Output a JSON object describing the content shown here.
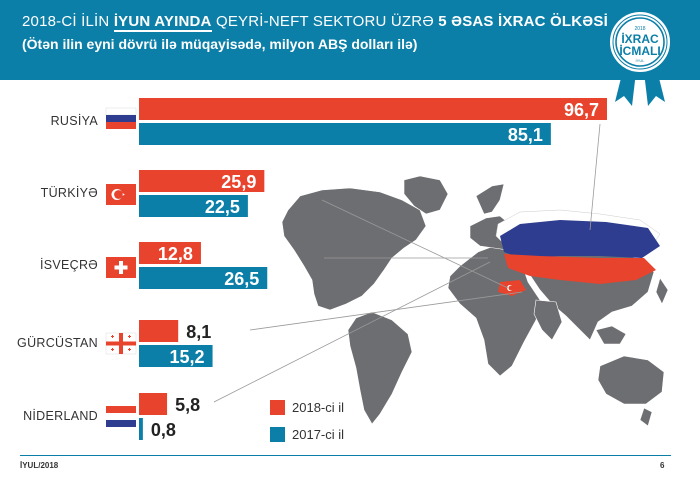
{
  "header": {
    "line1_part1": "2018-Cİ İLİN ",
    "line1_emph": "İYUN AYINDA",
    "line1_part2": " QEYRİ-NEFT SEKTORU ÜZRƏ ",
    "line1_bold": "5 ƏSAS İXRAC ÖLKƏSİ",
    "line2": "(Ötən ilin eyni dövrü ilə müqayisədə, milyon ABŞ dolları ilə)"
  },
  "badge": {
    "year_top": "2018",
    "word1": "İXRAC",
    "word2": "İCMALI",
    "year_bottom": "İYUL"
  },
  "colors": {
    "header": "#0c7fa8",
    "series_2018": "#e8432d",
    "series_2017": "#0c7fa8",
    "map_land": "#6d6e71",
    "connector": "#9a9a9a"
  },
  "chart_data": {
    "type": "bar",
    "orientation": "horizontal",
    "categories": [
      "RUSİYA",
      "TÜRKİYƏ",
      "İSVEÇRƏ",
      "GÜRCÜSTAN",
      "NİDERLAND"
    ],
    "series": [
      {
        "name": "2018-ci il",
        "values": [
          96.7,
          25.9,
          12.8,
          8.1,
          5.8
        ],
        "labels": [
          "96,7",
          "25,9",
          "12,8",
          "8,1",
          "5,8"
        ]
      },
      {
        "name": "2017-ci il",
        "values": [
          85.1,
          22.5,
          26.5,
          15.2,
          0.8
        ],
        "labels": [
          "85,1",
          "22,5",
          "26,5",
          "15,2",
          "0,8"
        ]
      }
    ],
    "xlim": [
      0,
      96.7
    ],
    "grid": false,
    "legend_position": "bottom-right",
    "xlabel": "",
    "ylabel": ""
  },
  "footer": {
    "left": "İYUL/2018",
    "right": "6"
  }
}
